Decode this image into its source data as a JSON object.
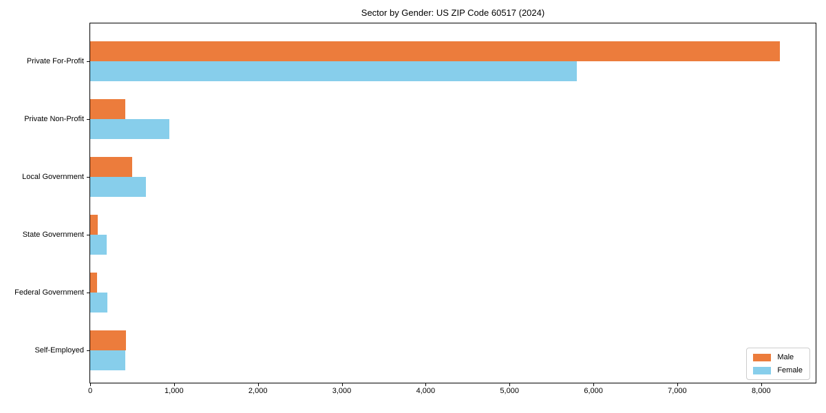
{
  "chart_data": {
    "type": "bar",
    "orientation": "horizontal",
    "title": "Sector by Gender: US ZIP Code 60517 (2024)",
    "categories": [
      "Private For-Profit",
      "Private Non-Profit",
      "Local Government",
      "State Government",
      "Federal Government",
      "Self-Employed"
    ],
    "series": [
      {
        "name": "Male",
        "color": "#EC7C3C",
        "values": [
          8220,
          420,
          500,
          90,
          80,
          425
        ]
      },
      {
        "name": "Female",
        "color": "#87CEEB",
        "values": [
          5800,
          940,
          665,
          195,
          205,
          415
        ]
      }
    ],
    "xlabel": "",
    "ylabel": "",
    "xlim": [
      0,
      8650
    ],
    "xticks": [
      0,
      1000,
      2000,
      3000,
      4000,
      5000,
      6000,
      7000,
      8000
    ],
    "xtick_labels": [
      "0",
      "1,000",
      "2,000",
      "3,000",
      "4,000",
      "5,000",
      "6,000",
      "7,000",
      "8,000"
    ],
    "grid": false,
    "legend": {
      "position": "lower right",
      "items": [
        "Male",
        "Female"
      ]
    }
  }
}
